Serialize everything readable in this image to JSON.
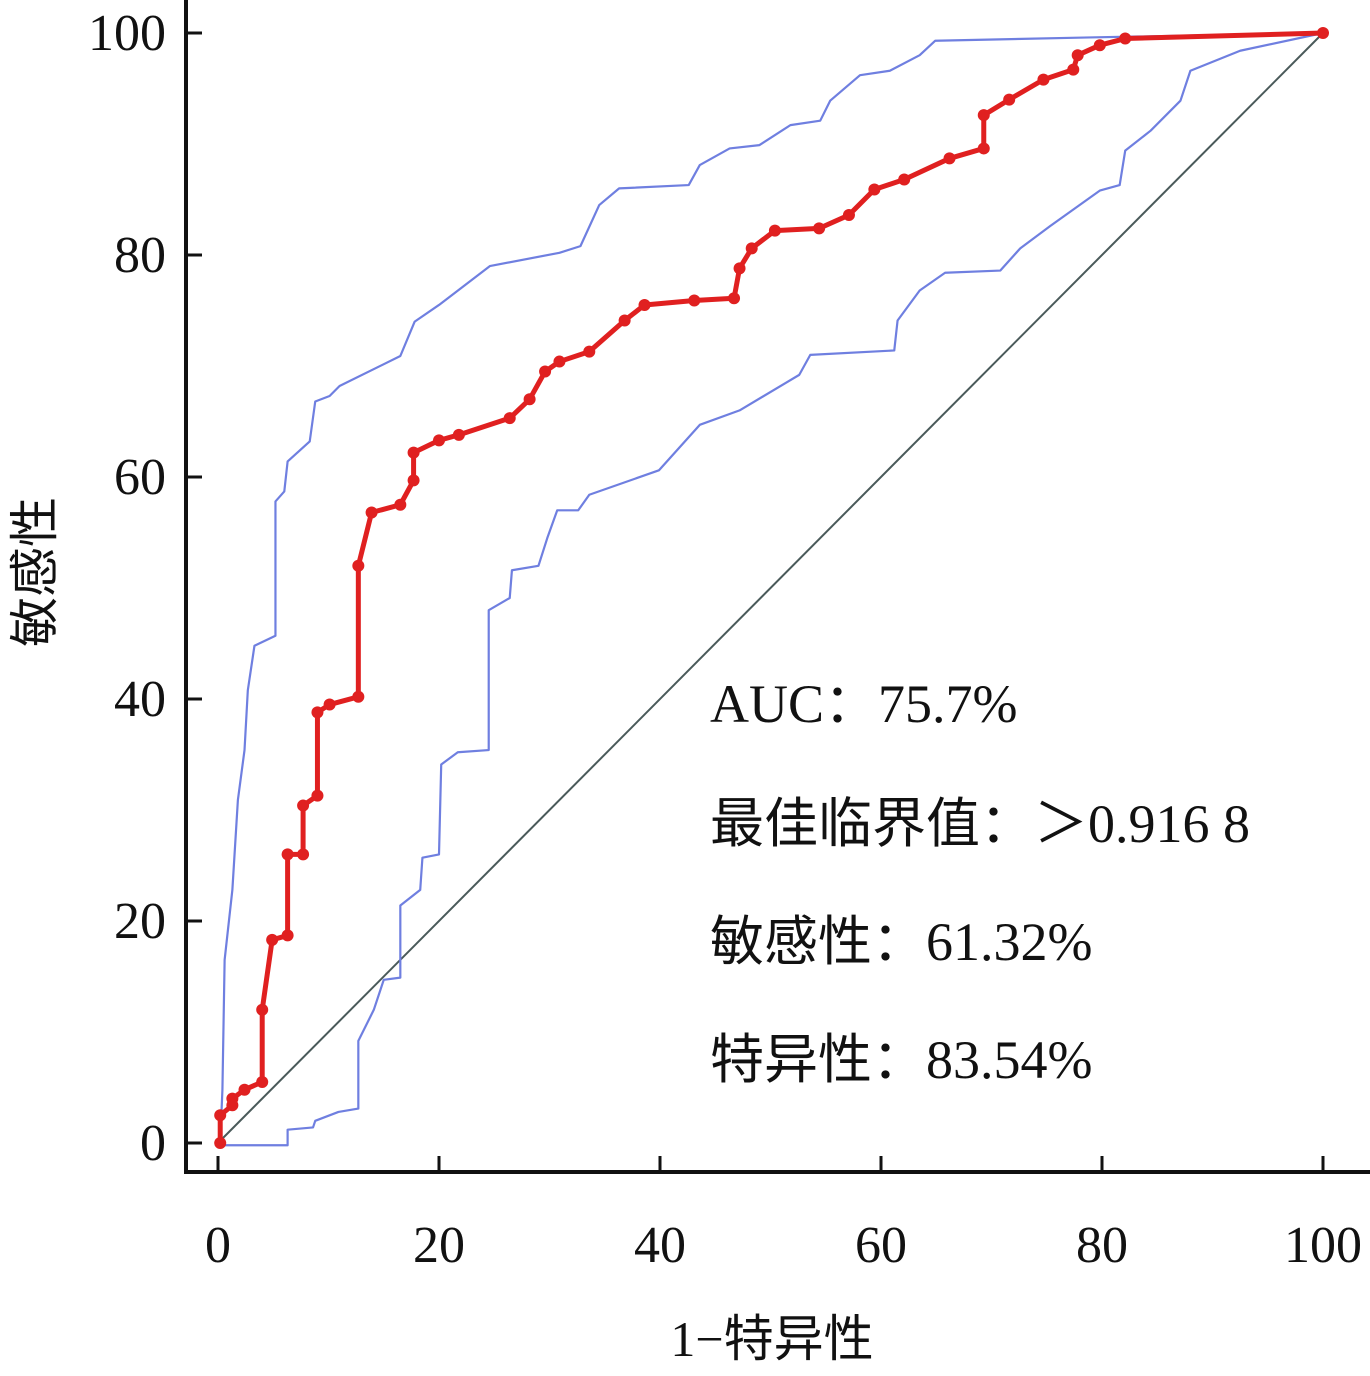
{
  "chart_data": {
    "type": "line",
    "title": "",
    "xlabel": "1−特异性",
    "ylabel": "敏感性",
    "xlim": [
      0,
      100
    ],
    "ylim": [
      0,
      100
    ],
    "xticks": [
      "0",
      "20",
      "40",
      "60",
      "80",
      "100"
    ],
    "yticks": [
      "0",
      "20",
      "40",
      "60",
      "80",
      "100"
    ],
    "grid": false,
    "series": [
      {
        "name": "ROC",
        "color": "#e02020",
        "style": "solid-markers",
        "x": [
          0.2,
          0.2,
          1.3,
          1.3,
          2.4,
          4,
          4,
          4.9,
          6.3,
          6.3,
          7.7,
          7.7,
          9,
          9,
          10.1,
          12.7,
          12.7,
          13.9,
          16.5,
          17.7,
          17.7,
          20,
          21.8,
          26.4,
          28.2,
          29.6,
          30.9,
          33.6,
          36.8,
          38.6,
          43.1,
          46.7,
          47.2,
          48.3,
          50.4,
          54.4,
          57.1,
          59.4,
          62.1,
          66.2,
          69.3,
          69.3,
          71.6,
          74.7,
          77.4,
          77.8,
          79.8,
          82.1,
          100
        ],
        "y": [
          0,
          2.5,
          3.4,
          4,
          4.8,
          5.5,
          12,
          18.3,
          18.7,
          26,
          26,
          30.4,
          31.3,
          38.8,
          39.5,
          40.2,
          52,
          56.8,
          57.5,
          59.7,
          62.2,
          63.3,
          63.8,
          65.3,
          67,
          69.5,
          70.4,
          71.3,
          74.1,
          75.5,
          75.9,
          76.1,
          78.8,
          80.6,
          82.2,
          82.4,
          83.6,
          85.9,
          86.8,
          88.7,
          89.6,
          92.6,
          94,
          95.8,
          96.7,
          98,
          98.9,
          99.5,
          100
        ]
      },
      {
        "name": "Upper 95% CI",
        "color": "#6f7fe0",
        "style": "thin",
        "x": [
          0.2,
          0.4,
          0.6,
          1.3,
          1.8,
          2.4,
          2.7,
          3.3,
          5.2,
          5.2,
          6,
          6.3,
          8.3,
          8.8,
          10.1,
          11,
          16.5,
          17.8,
          20,
          24.6,
          30.9,
          32.8,
          34.5,
          36.3,
          42.6,
          43.6,
          46.3,
          49,
          51.8,
          54.5,
          55.4,
          58.1,
          60.8,
          63.5,
          64.9,
          78.9,
          100
        ],
        "y": [
          0,
          4.8,
          16.5,
          22.8,
          30.9,
          35.4,
          40.8,
          44.8,
          45.7,
          57.8,
          58.7,
          61.4,
          63.2,
          66.8,
          67.3,
          68.2,
          70.9,
          74,
          75.5,
          79,
          80.2,
          80.8,
          84.5,
          86,
          86.3,
          88.1,
          89.6,
          89.9,
          91.7,
          92.1,
          93.9,
          96.2,
          96.6,
          98,
          99.3,
          99.6,
          100
        ]
      },
      {
        "name": "Lower 95% CI",
        "color": "#6f7fe0",
        "style": "thin",
        "x": [
          0.2,
          6.3,
          6.3,
          8.6,
          8.8,
          10.9,
          12.7,
          12.7,
          14.1,
          15,
          16.5,
          16.5,
          18.3,
          18.5,
          20,
          20.2,
          21.7,
          24.5,
          24.5,
          26.4,
          26.6,
          29,
          29.8,
          30.7,
          32.6,
          33.6,
          39.9,
          43.6,
          47.2,
          52.6,
          53.6,
          61.2,
          61.5,
          63.5,
          65.8,
          70.8,
          72.6,
          75.3,
          79.8,
          81.6,
          82.1,
          84.4,
          87.1,
          88,
          92.5,
          100
        ],
        "y": [
          -0.2,
          -0.2,
          1.2,
          1.4,
          2,
          2.8,
          3.1,
          9.2,
          12,
          14.7,
          14.9,
          21.4,
          22.8,
          25.7,
          26,
          34.1,
          35.2,
          35.4,
          48,
          49.1,
          51.6,
          52,
          54.5,
          57,
          57,
          58.4,
          60.6,
          64.7,
          66,
          69.2,
          71,
          71.4,
          74.1,
          76.8,
          78.4,
          78.6,
          80.6,
          82.6,
          85.8,
          86.3,
          89.4,
          91.2,
          93.9,
          96.6,
          98.4,
          100
        ]
      },
      {
        "name": "Reference",
        "color": "#4a5a5a",
        "style": "diagonal",
        "x": [
          0,
          100
        ],
        "y": [
          0,
          100
        ]
      }
    ],
    "annotations": [
      "AUC：75.7%",
      "最佳临界值：＞0.916 8",
      "敏感性：61.32%",
      "特异性：83.54%"
    ]
  }
}
